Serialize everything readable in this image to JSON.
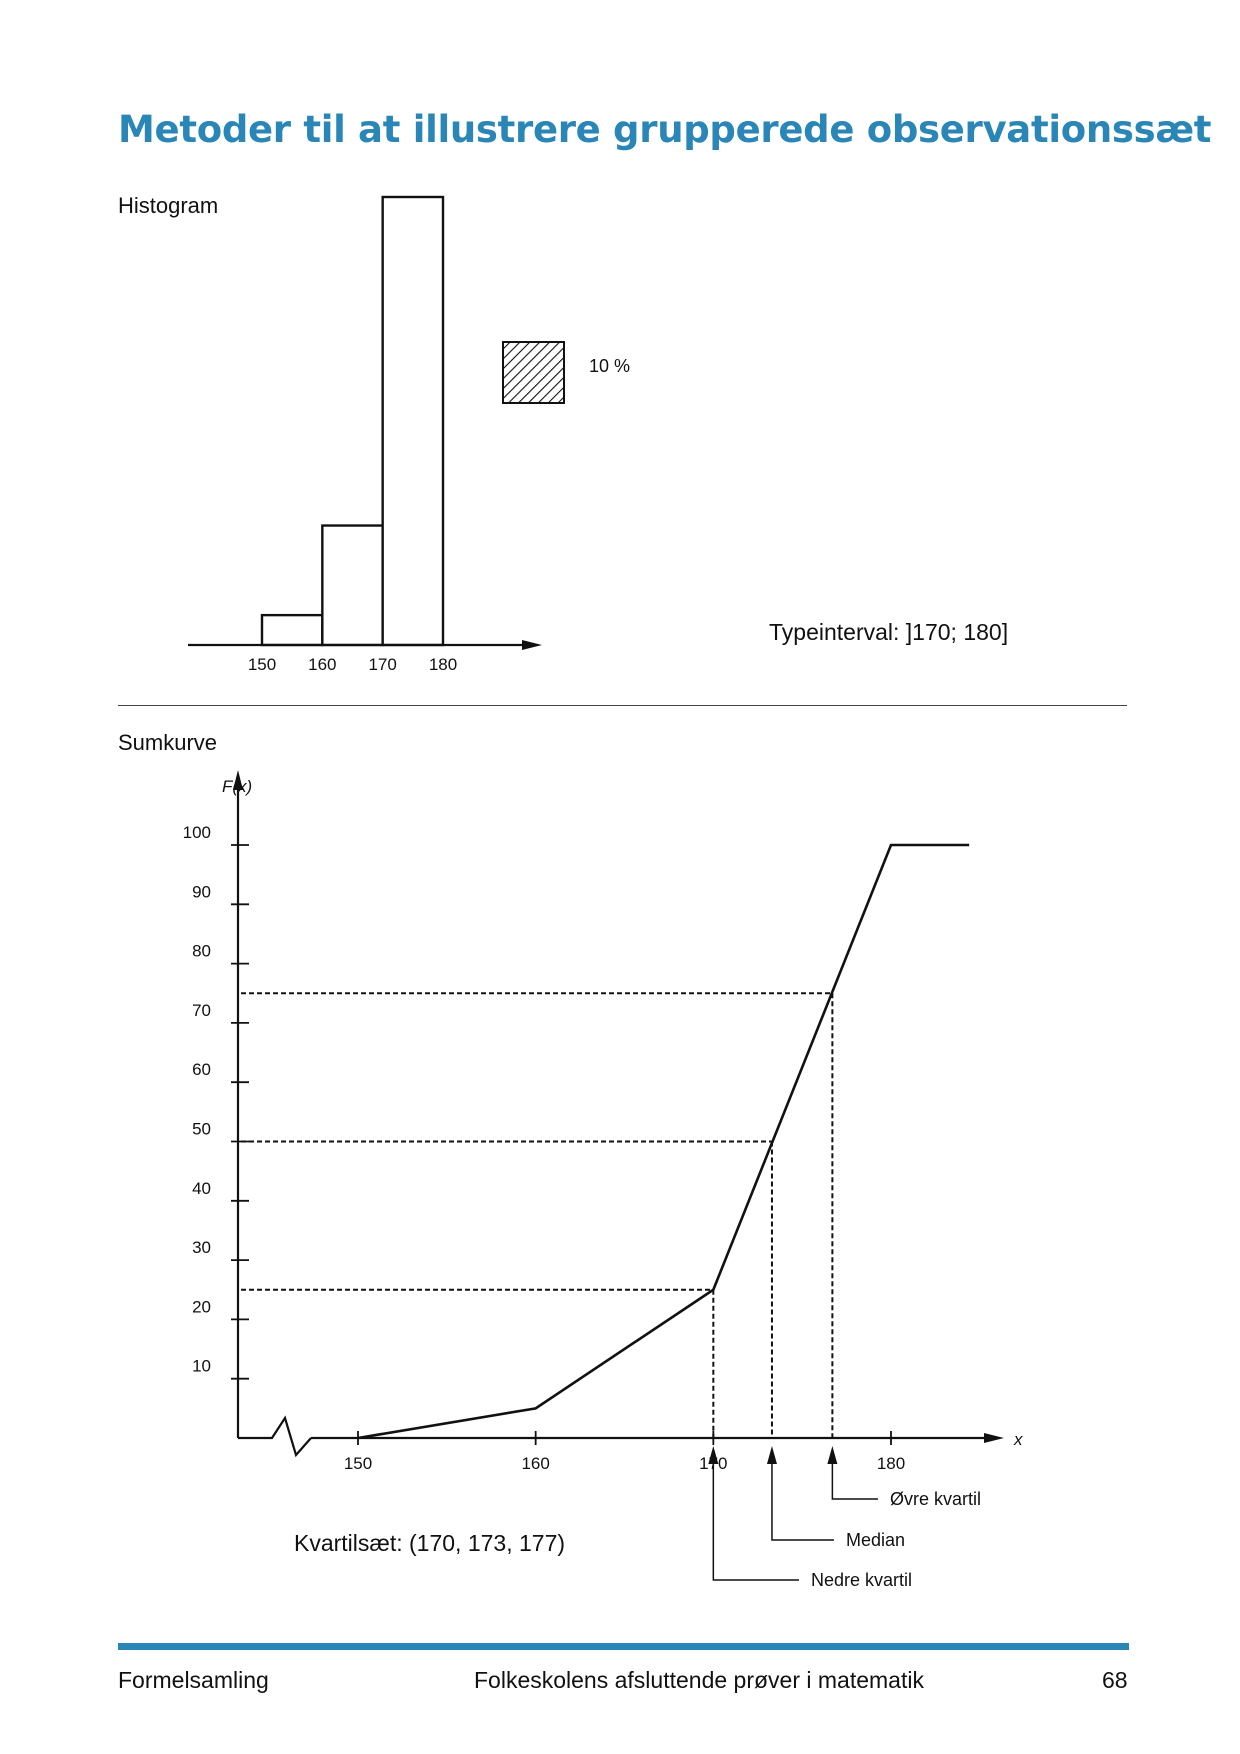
{
  "title": "Metoder til at illustrere grupperede observationssæt",
  "histogram": {
    "label": "Histogram",
    "legend_text": "10 %",
    "type_interval": "Typeinterval: ]170; 180]",
    "chart_data": {
      "type": "bar",
      "bins": [
        {
          "from": 150,
          "to": 160,
          "percent": 5
        },
        {
          "from": 160,
          "to": 170,
          "percent": 20
        },
        {
          "from": 170,
          "to": 180,
          "percent": 75
        }
      ],
      "x_ticks": [
        "150",
        "160",
        "170",
        "180"
      ],
      "legend_square_percent": 10
    }
  },
  "sumkurve": {
    "label": "Sumkurve",
    "y_axis_label": "F(x)",
    "x_axis_label": "x",
    "quartile_text": "Kvartilsæt: (170, 173, 177)",
    "annotations": {
      "upper": "Øvre kvartil",
      "median": "Median",
      "lower": "Nedre kvartil"
    },
    "chart_data": {
      "type": "line",
      "points": [
        {
          "x": 150,
          "y": 0
        },
        {
          "x": 160,
          "y": 5
        },
        {
          "x": 170,
          "y": 25
        },
        {
          "x": 180,
          "y": 100
        },
        {
          "x": 184.4,
          "y": 100
        }
      ],
      "x_ticks": [
        "150",
        "160",
        "170",
        "180"
      ],
      "y_ticks": [
        "10",
        "20",
        "30",
        "40",
        "50",
        "60",
        "70",
        "80",
        "90",
        "100"
      ],
      "ylim": [
        0,
        100
      ],
      "quartiles": [
        {
          "name": "Nedre kvartil",
          "x": 170,
          "y": 25
        },
        {
          "name": "Median",
          "x": 173.3,
          "y": 50
        },
        {
          "name": "Øvre kvartil",
          "x": 176.7,
          "y": 75
        }
      ]
    }
  },
  "footer": {
    "left": "Formelsamling",
    "center": "Folkeskolens afsluttende prøver i matematik",
    "page": "68"
  }
}
